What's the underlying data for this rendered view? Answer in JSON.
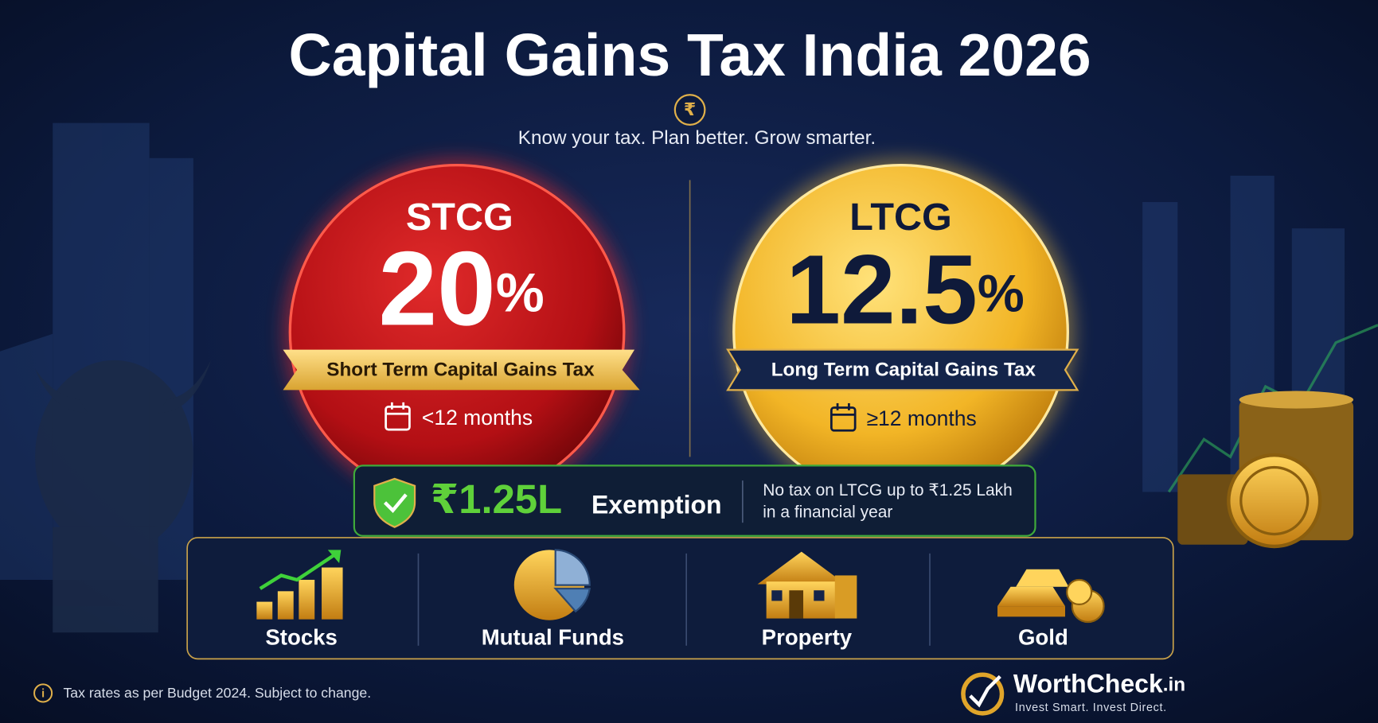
{
  "header": {
    "title": "Capital Gains Tax India 2026",
    "currency_symbol": "₹",
    "subtitle": "Know your tax. Plan better. Grow smarter."
  },
  "cards": [
    {
      "label": "STCG",
      "rate": "20",
      "unit": "%",
      "description": "Short Term Capital Gains Tax",
      "period": "<12 months"
    },
    {
      "label": "LTCG",
      "rate": "12.5",
      "unit": "%",
      "description": "Long Term Capital Gains Tax",
      "period": "≥12 months"
    }
  ],
  "exemption": {
    "amount": "₹1.25L",
    "label": "Exemption",
    "note": [
      "No tax on LTCG up to ₹1.25 Lakh",
      "in a financial year"
    ]
  },
  "assets": [
    "Stocks",
    "Mutual Funds",
    "Property",
    "Gold"
  ],
  "footer": {
    "info_icon": "i",
    "disclaimer": "Tax rates as per Budget 2024. Subject to change.",
    "brand": "WorthCheck",
    "brand_suffix": ".in",
    "tagline": "Invest Smart. Invest Direct."
  }
}
